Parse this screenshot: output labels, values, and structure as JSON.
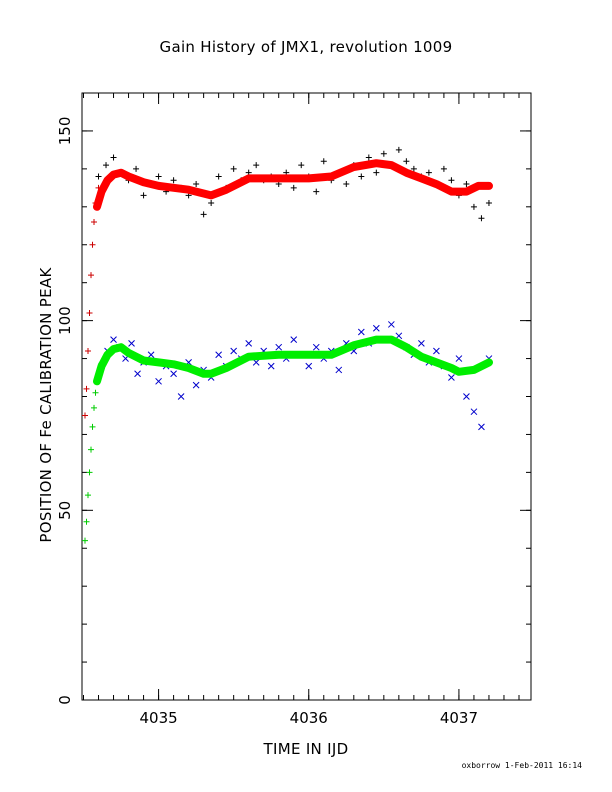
{
  "chart_data": {
    "type": "scatter",
    "title": "Gain History of JMX1, revolution 1009",
    "xlabel": "TIME IN IJD",
    "ylabel": "POSITION OF Fe CALIBRATION PEAK",
    "xlim": [
      4034.49,
      4037.48
    ],
    "ylim": [
      0,
      160
    ],
    "xticks": [
      4035,
      4036,
      4037
    ],
    "xtick_labels": [
      "4035",
      "4036",
      "4037"
    ],
    "yticks": [
      0,
      50,
      100,
      150
    ],
    "ytick_labels": [
      "0",
      "50",
      "100",
      "150"
    ],
    "grid": false,
    "series": [
      {
        "marker": "+",
        "color": "#000000",
        "x": [
          4034.6,
          4034.65,
          4034.7,
          4034.75,
          4034.8,
          4034.85,
          4034.9,
          4034.95,
          4035.0,
          4035.05,
          4035.1,
          4035.15,
          4035.2,
          4035.25,
          4035.3,
          4035.35,
          4035.4,
          4035.45,
          4035.5,
          4035.55,
          4035.6,
          4035.65,
          4035.7,
          4035.75,
          4035.8,
          4035.85,
          4035.9,
          4035.95,
          4036.0,
          4036.05,
          4036.1,
          4036.15,
          4036.2,
          4036.25,
          4036.3,
          4036.35,
          4036.4,
          4036.45,
          4036.5,
          4036.55,
          4036.6,
          4036.65,
          4036.7,
          4036.75,
          4036.8,
          4036.85,
          4036.9,
          4036.95,
          4037.0,
          4037.05,
          4037.1,
          4037.15,
          4037.2
        ],
        "y": [
          138,
          141,
          143,
          139,
          137,
          140,
          133,
          136,
          138,
          134,
          137,
          135,
          133,
          136,
          128,
          131,
          138,
          135,
          140,
          137,
          139,
          141,
          137,
          138,
          136,
          139,
          135,
          141,
          138,
          134,
          142,
          137,
          139,
          136,
          141,
          138,
          143,
          139,
          144,
          141,
          145,
          142,
          140,
          138,
          139,
          136,
          140,
          137,
          133,
          136,
          130,
          127,
          131
        ]
      },
      {
        "marker": "+",
        "color": "#cc0000",
        "x": [
          4034.51,
          4034.52,
          4034.53,
          4034.54,
          4034.55,
          4034.56,
          4034.57,
          4034.58,
          4034.6
        ],
        "y": [
          75,
          82,
          92,
          102,
          112,
          120,
          126,
          131,
          135
        ]
      },
      {
        "marker": "x",
        "color": "#0000cc",
        "x": [
          4034.62,
          4034.66,
          4034.7,
          4034.74,
          4034.78,
          4034.82,
          4034.86,
          4034.9,
          4034.95,
          4035.0,
          4035.05,
          4035.1,
          4035.15,
          4035.2,
          4035.25,
          4035.3,
          4035.35,
          4035.4,
          4035.45,
          4035.5,
          4035.55,
          4035.6,
          4035.65,
          4035.7,
          4035.75,
          4035.8,
          4035.85,
          4035.9,
          4035.95,
          4036.0,
          4036.05,
          4036.1,
          4036.15,
          4036.2,
          4036.25,
          4036.3,
          4036.35,
          4036.4,
          4036.45,
          4036.5,
          4036.55,
          4036.6,
          4036.65,
          4036.7,
          4036.75,
          4036.8,
          4036.85,
          4036.9,
          4036.95,
          4037.0,
          4037.05,
          4037.1,
          4037.15,
          4037.2
        ],
        "y": [
          88,
          92,
          95,
          93,
          90,
          94,
          86,
          89,
          91,
          84,
          88,
          86,
          80,
          89,
          83,
          87,
          85,
          91,
          88,
          92,
          90,
          94,
          89,
          92,
          88,
          93,
          90,
          95,
          91,
          88,
          93,
          90,
          92,
          87,
          94,
          92,
          97,
          94,
          98,
          95,
          99,
          96,
          93,
          91,
          94,
          89,
          92,
          88,
          85,
          90,
          80,
          76,
          72,
          90
        ]
      },
      {
        "marker": "+",
        "color": "#00cc00",
        "x": [
          4034.51,
          4034.52,
          4034.53,
          4034.54,
          4034.55,
          4034.56,
          4034.57,
          4034.58,
          4034.6
        ],
        "y": [
          42,
          47,
          54,
          60,
          66,
          72,
          77,
          81,
          86
        ]
      },
      {
        "marker": "line",
        "color": "#ff0000",
        "x": [
          4034.59,
          4034.62,
          4034.66,
          4034.7,
          4034.75,
          4034.8,
          4034.9,
          4035.0,
          4035.1,
          4035.2,
          4035.3,
          4035.35,
          4035.45,
          4035.6,
          4035.8,
          4036.0,
          4036.15,
          4036.3,
          4036.45,
          4036.55,
          4036.65,
          4036.75,
          4036.85,
          4036.95,
          4037.05,
          4037.13,
          4037.2
        ],
        "y": [
          130,
          134,
          137,
          138.5,
          139,
          138,
          136.5,
          135.5,
          135,
          134.5,
          133.5,
          133,
          134.5,
          137.5,
          137.5,
          137.5,
          138,
          140.5,
          141.5,
          141,
          139,
          137.5,
          136,
          134,
          134,
          135.5,
          135.5
        ]
      },
      {
        "marker": "line",
        "color": "#00ee00",
        "x": [
          4034.59,
          4034.62,
          4034.66,
          4034.7,
          4034.75,
          4034.8,
          4034.9,
          4035.0,
          4035.1,
          4035.2,
          4035.3,
          4035.35,
          4035.45,
          4035.6,
          4035.8,
          4036.0,
          4036.15,
          4036.3,
          4036.45,
          4036.55,
          4036.65,
          4036.75,
          4036.85,
          4036.95,
          4037.0,
          4037.1,
          4037.2
        ],
        "y": [
          84,
          88,
          91,
          92.5,
          93,
          91.5,
          89.5,
          89,
          88.5,
          87.5,
          86,
          86,
          87.5,
          90.5,
          91,
          91,
          91,
          93.5,
          95,
          95,
          93,
          90.5,
          89,
          87.5,
          86.5,
          87,
          89
        ]
      }
    ]
  },
  "footer": "oxborrow  1-Feb-2011 16:14"
}
